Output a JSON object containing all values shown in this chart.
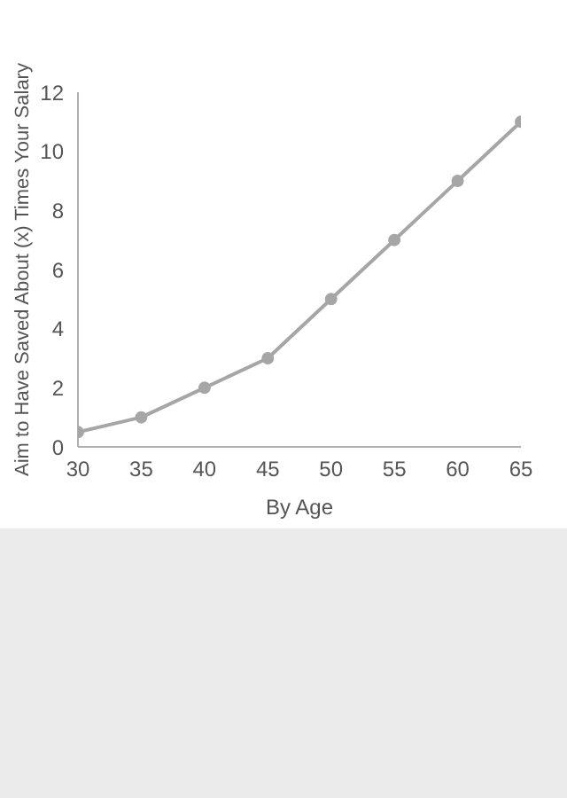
{
  "chart_data": {
    "type": "line",
    "xlabel": "By Age",
    "ylabel": "Aim to Have Saved About (x) Times Your Salary",
    "x": [
      30,
      35,
      40,
      45,
      50,
      55,
      60,
      65
    ],
    "series": [
      {
        "color": "#a6a6a6",
        "values": [
          0.5,
          1,
          2,
          3,
          5,
          7,
          9,
          11
        ]
      }
    ],
    "xlim": [
      30,
      65
    ],
    "xticks": [
      30,
      35,
      40,
      45,
      50,
      55,
      60,
      65
    ],
    "ylim": [
      0,
      12
    ],
    "yticks": [
      0,
      2,
      4,
      6,
      8,
      10,
      12
    ],
    "grid": false,
    "legend": false,
    "marker": "circle",
    "line_style": "solid"
  }
}
